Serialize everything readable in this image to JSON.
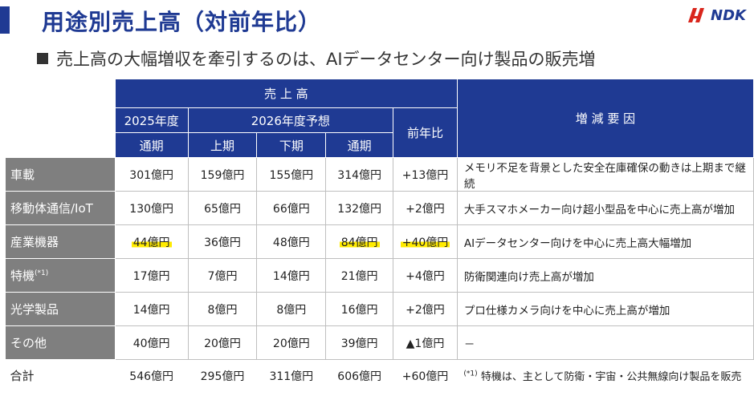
{
  "title": "用途別売上高（対前年比）",
  "subtitle": "売上高の大幅増収を牽引するのは、AIデータセンター向け製品の販売増",
  "logo_text": "NDK",
  "header": {
    "sales": "売 上 高",
    "y2025": "2025年度",
    "y2026": "2026年度予想",
    "yoy": "前年比",
    "factors": "増 減 要 因",
    "full_year_2025": "通期",
    "h1": "上期",
    "h2": "下期",
    "full_year_2026": "通期"
  },
  "rows": [
    {
      "label": "車載",
      "fy2025": "301億円",
      "h1": "159億円",
      "h2": "155億円",
      "fy2026": "314億円",
      "yoy": "+13億円",
      "reason": "メモリ不足を背景とした安全在庫確保の動きは上期まで継続"
    },
    {
      "label": "移動体通信/IoT",
      "fy2025": "130億円",
      "h1": "65億円",
      "h2": "66億円",
      "fy2026": "132億円",
      "yoy": "+2億円",
      "reason": "大手スマホメーカー向け超小型品を中心に売上高が増加"
    },
    {
      "label": "産業機器",
      "fy2025": "44億円",
      "h1": "36億円",
      "h2": "48億円",
      "fy2026": "84億円",
      "yoy": "+40億円",
      "reason": "AIデータセンター向けを中心に売上高大幅増加"
    },
    {
      "label": "特機",
      "label_sup": "(*1)",
      "fy2025": "17億円",
      "h1": "7億円",
      "h2": "14億円",
      "fy2026": "21億円",
      "yoy": "+4億円",
      "reason": "防衛関連向け売上高が増加"
    },
    {
      "label": "光学製品",
      "fy2025": "14億円",
      "h1": "8億円",
      "h2": "8億円",
      "fy2026": "16億円",
      "yoy": "+2億円",
      "reason": "プロ仕様カメラ向けを中心に売上高が増加"
    },
    {
      "label": "その他",
      "fy2025": "40億円",
      "h1": "20億円",
      "h2": "20億円",
      "fy2026": "39億円",
      "yoy": "▲1億円",
      "reason": "－"
    }
  ],
  "total": {
    "label": "合計",
    "fy2025": "546億円",
    "h1": "295億円",
    "h2": "311億円",
    "fy2026": "606億円",
    "yoy": "+60億円"
  },
  "footnote_mark": "(*1)",
  "footnote": "特機は、主として防衛・宇宙・公共無線向け製品を販売"
}
